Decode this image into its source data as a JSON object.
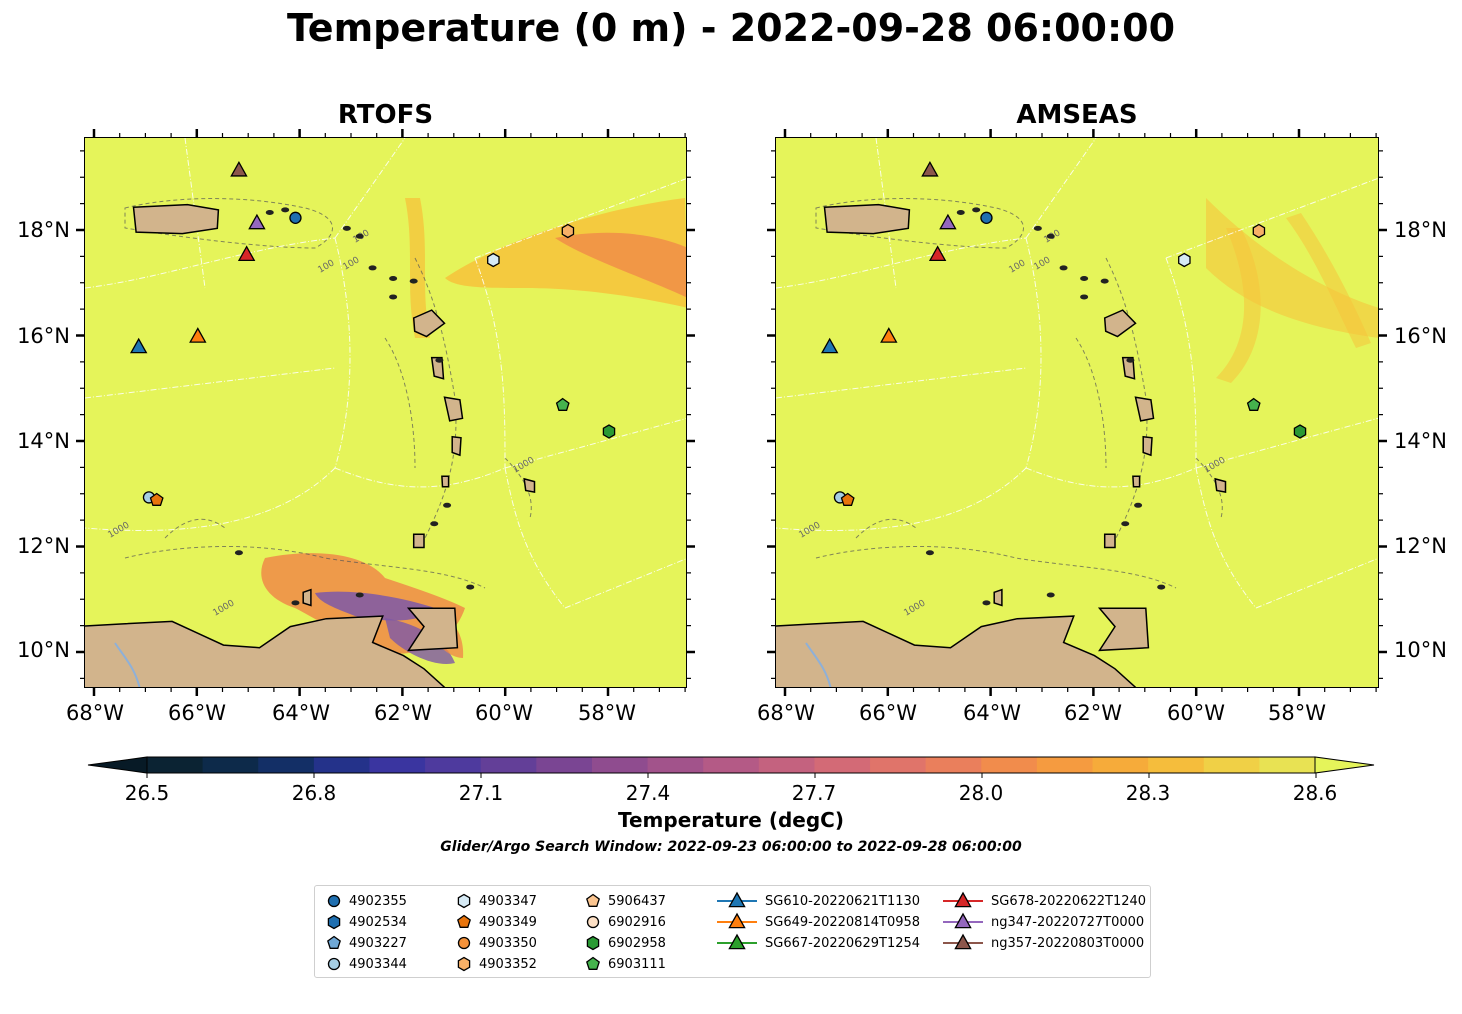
{
  "title": "Temperature (0 m) - 2022-09-28 06:00:00",
  "panels": [
    {
      "title": "RTOFS"
    },
    {
      "title": "AMSEAS"
    }
  ],
  "lat_ticks": [
    "18°N",
    "16°N",
    "14°N",
    "12°N",
    "10°N"
  ],
  "lon_ticks": [
    "68°W",
    "66°W",
    "64°W",
    "62°W",
    "60°W",
    "58°W"
  ],
  "contour_labels": {
    "shallow": "100",
    "deep": "1000"
  },
  "colorbar": {
    "label": "Temperature (degC)",
    "ticks": [
      "26.5",
      "26.8",
      "27.1",
      "27.4",
      "27.7",
      "28.0",
      "28.3",
      "28.6"
    ],
    "colors": [
      "#0b2333",
      "#0d2a4a",
      "#132f66",
      "#24328a",
      "#3a35a0",
      "#4e3a9e",
      "#633f98",
      "#7a4593",
      "#8f4c8f",
      "#a2538b",
      "#b45a86",
      "#c4627f",
      "#d36a76",
      "#e0746a",
      "#ea7f5c",
      "#f18c4c",
      "#f59b40",
      "#f6ab3a",
      "#f5bd3c",
      "#f0d046",
      "#e8e253"
    ],
    "extend_low_color": "#071a26",
    "extend_high_color": "#e5f45a"
  },
  "search_window": "Glider/Argo Search Window: 2022-09-23 06:00:00 to 2022-09-28 06:00:00",
  "colors": {
    "ocean": "#e5f45a",
    "land": "#d2b48c",
    "warm_patch": "#f5c53c",
    "hot_patch": "#f08a48",
    "cool_patch": "#7d58a8"
  },
  "legend": [
    {
      "label": "4902355",
      "marker": "circle",
      "color": "#1f6fb0",
      "line": false
    },
    {
      "label": "4902534",
      "marker": "hexagon",
      "color": "#1f6fb0",
      "line": false
    },
    {
      "label": "4903227",
      "marker": "pentagon",
      "color": "#6fa8d6",
      "line": false
    },
    {
      "label": "4903344",
      "marker": "circle",
      "color": "#a6cee3",
      "line": false
    },
    {
      "label": "4903347",
      "marker": "hexagon",
      "color": "#d6eaf5",
      "line": false
    },
    {
      "label": "4903349",
      "marker": "pentagon",
      "color": "#e8740c",
      "line": false
    },
    {
      "label": "4903350",
      "marker": "circle",
      "color": "#f5923a",
      "line": false
    },
    {
      "label": "4903352",
      "marker": "hexagon",
      "color": "#f7b067",
      "line": false
    },
    {
      "label": "5906437",
      "marker": "pentagon",
      "color": "#fbc590",
      "line": false
    },
    {
      "label": "6902916",
      "marker": "circle",
      "color": "#fde0c5",
      "line": false
    },
    {
      "label": "6902958",
      "marker": "hexagon",
      "color": "#2a9a34",
      "line": false
    },
    {
      "label": "6903111",
      "marker": "pentagon",
      "color": "#45b34d",
      "line": false
    },
    {
      "label": "SG610-20220621T1130",
      "marker": "triangle",
      "color": "#1f77b4",
      "line": true
    },
    {
      "label": "SG649-20220814T0958",
      "marker": "triangle",
      "color": "#ff7f0e",
      "line": true
    },
    {
      "label": "SG667-20220629T1254",
      "marker": "triangle",
      "color": "#2ca02c",
      "line": true
    },
    {
      "label": "SG678-20220622T1240",
      "marker": "triangle",
      "color": "#d62728",
      "line": true
    },
    {
      "label": "ng347-20220727T0000",
      "marker": "triangle",
      "color": "#9467bd",
      "line": true
    },
    {
      "label": "ng357-20220803T0000",
      "marker": "triangle",
      "color": "#8c564b",
      "line": true
    }
  ],
  "observations": [
    {
      "id": "4902355",
      "lon": -64.1,
      "lat": 18.25
    },
    {
      "id": "4903347",
      "lon": -60.25,
      "lat": 17.45
    },
    {
      "id": "4903352",
      "lon": -58.8,
      "lat": 18.0
    },
    {
      "id": "6903111",
      "lon": -58.9,
      "lat": 14.7
    },
    {
      "id": "6902958",
      "lon": -58.0,
      "lat": 14.2
    },
    {
      "id": "4903344",
      "lon": -66.95,
      "lat": 12.95
    },
    {
      "id": "4903349",
      "lon": -66.8,
      "lat": 12.9
    },
    {
      "id": "SG610-20220621T1130",
      "lon": -67.15,
      "lat": 15.8
    },
    {
      "id": "SG649-20220814T0958",
      "lon": -66.0,
      "lat": 16.0
    },
    {
      "id": "SG678-20220622T1240",
      "lon": -65.05,
      "lat": 17.55
    },
    {
      "id": "ng347-20220727T0000",
      "lon": -64.85,
      "lat": 18.15
    },
    {
      "id": "ng357-20220803T0000",
      "lon": -65.2,
      "lat": 19.15
    }
  ]
}
